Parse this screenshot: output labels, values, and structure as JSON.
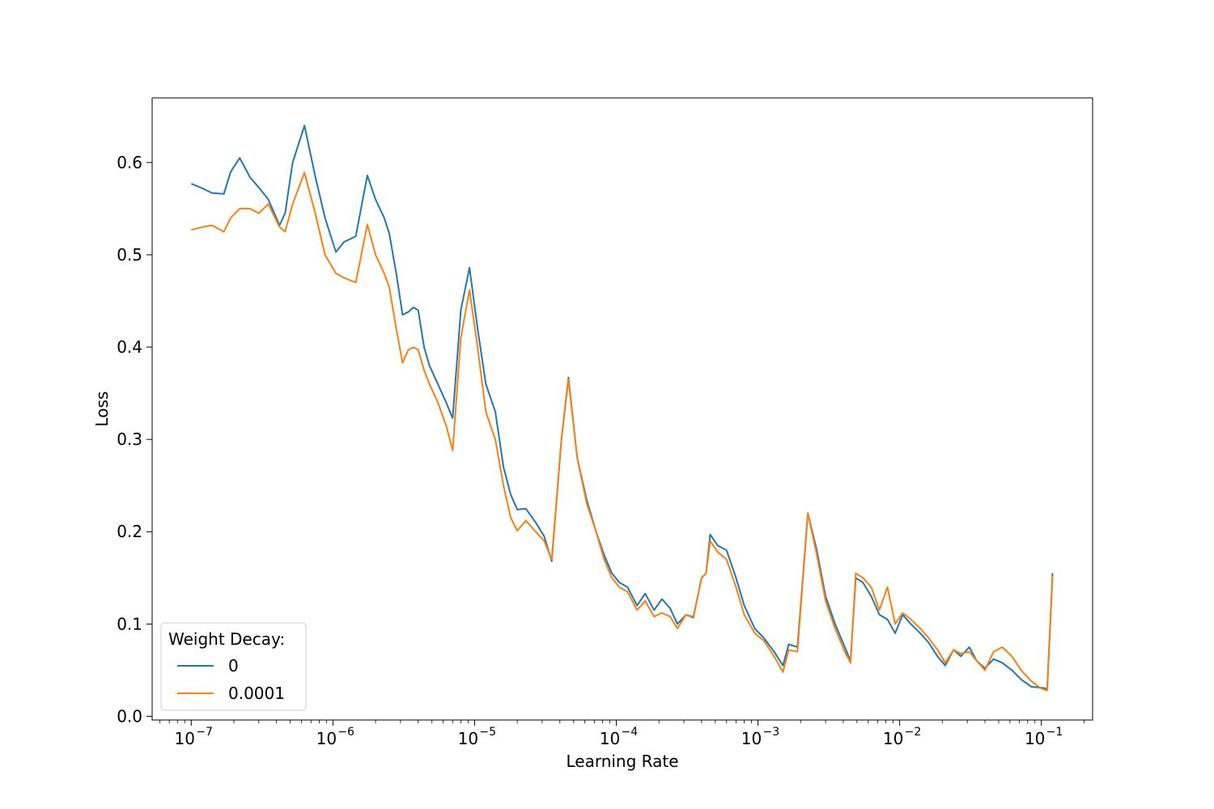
{
  "chart_data": {
    "type": "line",
    "xlabel": "Learning Rate",
    "ylabel": "Loss",
    "xscale": "log",
    "xlim": [
      5.3e-08,
      0.23
    ],
    "ylim": [
      -0.004,
      0.67
    ],
    "grid": false,
    "legend": {
      "title": "Weight Decay:",
      "placement": "lower-left"
    },
    "x_ticks": [
      {
        "value": 1e-07,
        "label": "10",
        "exp": "−7"
      },
      {
        "value": 1e-06,
        "label": "10",
        "exp": "−6"
      },
      {
        "value": 1e-05,
        "label": "10",
        "exp": "−5"
      },
      {
        "value": 0.0001,
        "label": "10",
        "exp": "−4"
      },
      {
        "value": 0.001,
        "label": "10",
        "exp": "−3"
      },
      {
        "value": 0.01,
        "label": "10",
        "exp": "−2"
      },
      {
        "value": 0.1,
        "label": "10",
        "exp": "−1"
      }
    ],
    "y_ticks": [
      {
        "value": 0.0,
        "label": "0.0"
      },
      {
        "value": 0.1,
        "label": "0.1"
      },
      {
        "value": 0.2,
        "label": "0.2"
      },
      {
        "value": 0.3,
        "label": "0.3"
      },
      {
        "value": 0.4,
        "label": "0.4"
      },
      {
        "value": 0.5,
        "label": "0.5"
      },
      {
        "value": 0.6,
        "label": "0.6"
      }
    ],
    "series": [
      {
        "name": "0",
        "color": "#1f77b4",
        "points": [
          [
            1e-07,
            0.577
          ],
          [
            1.2e-07,
            0.572
          ],
          [
            1.4e-07,
            0.567
          ],
          [
            1.7e-07,
            0.566
          ],
          [
            1.9e-07,
            0.59
          ],
          [
            2.2e-07,
            0.605
          ],
          [
            2.6e-07,
            0.584
          ],
          [
            3e-07,
            0.573
          ],
          [
            3.5e-07,
            0.56
          ],
          [
            4.2e-07,
            0.532
          ],
          [
            4.6e-07,
            0.545
          ],
          [
            5.2e-07,
            0.6
          ],
          [
            6.3e-07,
            0.64
          ],
          [
            7.5e-07,
            0.585
          ],
          [
            8.8e-07,
            0.54
          ],
          [
            1.05e-06,
            0.503
          ],
          [
            1.2e-06,
            0.514
          ],
          [
            1.45e-06,
            0.52
          ],
          [
            1.75e-06,
            0.586
          ],
          [
            2e-06,
            0.56
          ],
          [
            2.3e-06,
            0.54
          ],
          [
            2.5e-06,
            0.523
          ],
          [
            2.8e-06,
            0.48
          ],
          [
            3.1e-06,
            0.435
          ],
          [
            3.4e-06,
            0.438
          ],
          [
            3.7e-06,
            0.443
          ],
          [
            4e-06,
            0.44
          ],
          [
            4.4e-06,
            0.4
          ],
          [
            4.8e-06,
            0.38
          ],
          [
            5.5e-06,
            0.36
          ],
          [
            6.3e-06,
            0.34
          ],
          [
            7e-06,
            0.323
          ],
          [
            8e-06,
            0.44
          ],
          [
            9.2e-06,
            0.486
          ],
          [
            1.05e-05,
            0.42
          ],
          [
            1.2e-05,
            0.36
          ],
          [
            1.4e-05,
            0.33
          ],
          [
            1.6e-05,
            0.27
          ],
          [
            1.8e-05,
            0.24
          ],
          [
            2e-05,
            0.224
          ],
          [
            2.3e-05,
            0.225
          ],
          [
            2.7e-05,
            0.21
          ],
          [
            3.1e-05,
            0.195
          ],
          [
            3.5e-05,
            0.168
          ],
          [
            4.1e-05,
            0.3
          ],
          [
            4.6e-05,
            0.367
          ],
          [
            5.3e-05,
            0.28
          ],
          [
            6.2e-05,
            0.234
          ],
          [
            7.2e-05,
            0.2
          ],
          [
            8.2e-05,
            0.175
          ],
          [
            9.3e-05,
            0.155
          ],
          [
            0.000105,
            0.145
          ],
          [
            0.00012,
            0.14
          ],
          [
            0.00014,
            0.12
          ],
          [
            0.00016,
            0.133
          ],
          [
            0.000185,
            0.115
          ],
          [
            0.00021,
            0.127
          ],
          [
            0.00024,
            0.117
          ],
          [
            0.00027,
            0.1
          ],
          [
            0.00031,
            0.11
          ],
          [
            0.00035,
            0.107
          ],
          [
            0.0004,
            0.15
          ],
          [
            0.00043,
            0.155
          ],
          [
            0.00046,
            0.197
          ],
          [
            0.00052,
            0.185
          ],
          [
            0.0006,
            0.18
          ],
          [
            0.0007,
            0.15
          ],
          [
            0.0008,
            0.12
          ],
          [
            0.00095,
            0.095
          ],
          [
            0.0011,
            0.085
          ],
          [
            0.0013,
            0.07
          ],
          [
            0.0015,
            0.055
          ],
          [
            0.00165,
            0.078
          ],
          [
            0.0019,
            0.075
          ],
          [
            0.00225,
            0.22
          ],
          [
            0.0026,
            0.18
          ],
          [
            0.003,
            0.13
          ],
          [
            0.0035,
            0.1
          ],
          [
            0.0041,
            0.075
          ],
          [
            0.0045,
            0.06
          ],
          [
            0.0049,
            0.15
          ],
          [
            0.0055,
            0.145
          ],
          [
            0.0063,
            0.13
          ],
          [
            0.0072,
            0.11
          ],
          [
            0.0082,
            0.105
          ],
          [
            0.0093,
            0.09
          ],
          [
            0.0105,
            0.11
          ],
          [
            0.012,
            0.1
          ],
          [
            0.014,
            0.09
          ],
          [
            0.016,
            0.08
          ],
          [
            0.0185,
            0.065
          ],
          [
            0.021,
            0.055
          ],
          [
            0.024,
            0.072
          ],
          [
            0.027,
            0.065
          ],
          [
            0.031,
            0.075
          ],
          [
            0.035,
            0.06
          ],
          [
            0.04,
            0.052
          ],
          [
            0.046,
            0.062
          ],
          [
            0.053,
            0.058
          ],
          [
            0.062,
            0.05
          ],
          [
            0.072,
            0.04
          ],
          [
            0.085,
            0.032
          ],
          [
            0.1,
            0.031
          ],
          [
            0.11,
            0.03
          ],
          [
            0.12,
            0.155
          ]
        ]
      },
      {
        "name": "0.0001",
        "color": "#ff7f0e",
        "points": [
          [
            1e-07,
            0.527
          ],
          [
            1.2e-07,
            0.53
          ],
          [
            1.4e-07,
            0.532
          ],
          [
            1.7e-07,
            0.525
          ],
          [
            1.9e-07,
            0.54
          ],
          [
            2.2e-07,
            0.55
          ],
          [
            2.6e-07,
            0.55
          ],
          [
            3e-07,
            0.545
          ],
          [
            3.5e-07,
            0.555
          ],
          [
            4.2e-07,
            0.53
          ],
          [
            4.6e-07,
            0.525
          ],
          [
            5.2e-07,
            0.555
          ],
          [
            6.3e-07,
            0.589
          ],
          [
            7.5e-07,
            0.545
          ],
          [
            8.8e-07,
            0.5
          ],
          [
            1.05e-06,
            0.48
          ],
          [
            1.2e-06,
            0.475
          ],
          [
            1.45e-06,
            0.47
          ],
          [
            1.75e-06,
            0.533
          ],
          [
            2e-06,
            0.5
          ],
          [
            2.3e-06,
            0.48
          ],
          [
            2.5e-06,
            0.465
          ],
          [
            2.8e-06,
            0.42
          ],
          [
            3.1e-06,
            0.383
          ],
          [
            3.4e-06,
            0.397
          ],
          [
            3.7e-06,
            0.4
          ],
          [
            4e-06,
            0.397
          ],
          [
            4.4e-06,
            0.375
          ],
          [
            4.8e-06,
            0.36
          ],
          [
            5.5e-06,
            0.34
          ],
          [
            6.3e-06,
            0.315
          ],
          [
            7e-06,
            0.288
          ],
          [
            8e-06,
            0.41
          ],
          [
            9.2e-06,
            0.462
          ],
          [
            1.05e-05,
            0.4
          ],
          [
            1.2e-05,
            0.33
          ],
          [
            1.4e-05,
            0.3
          ],
          [
            1.6e-05,
            0.25
          ],
          [
            1.8e-05,
            0.215
          ],
          [
            2e-05,
            0.201
          ],
          [
            2.3e-05,
            0.212
          ],
          [
            2.7e-05,
            0.2
          ],
          [
            3.1e-05,
            0.19
          ],
          [
            3.5e-05,
            0.17
          ],
          [
            4.1e-05,
            0.3
          ],
          [
            4.6e-05,
            0.365
          ],
          [
            5.3e-05,
            0.28
          ],
          [
            6.2e-05,
            0.23
          ],
          [
            7.2e-05,
            0.2
          ],
          [
            8.2e-05,
            0.17
          ],
          [
            9.3e-05,
            0.15
          ],
          [
            0.000105,
            0.14
          ],
          [
            0.00012,
            0.135
          ],
          [
            0.00014,
            0.115
          ],
          [
            0.00016,
            0.125
          ],
          [
            0.000185,
            0.108
          ],
          [
            0.00021,
            0.112
          ],
          [
            0.00024,
            0.108
          ],
          [
            0.00027,
            0.095
          ],
          [
            0.00031,
            0.11
          ],
          [
            0.00035,
            0.108
          ],
          [
            0.0004,
            0.15
          ],
          [
            0.00043,
            0.155
          ],
          [
            0.00046,
            0.19
          ],
          [
            0.00052,
            0.178
          ],
          [
            0.0006,
            0.17
          ],
          [
            0.0007,
            0.14
          ],
          [
            0.0008,
            0.11
          ],
          [
            0.00095,
            0.09
          ],
          [
            0.0011,
            0.082
          ],
          [
            0.0013,
            0.065
          ],
          [
            0.0015,
            0.048
          ],
          [
            0.00165,
            0.072
          ],
          [
            0.0019,
            0.07
          ],
          [
            0.00225,
            0.22
          ],
          [
            0.0026,
            0.175
          ],
          [
            0.003,
            0.125
          ],
          [
            0.0035,
            0.095
          ],
          [
            0.0041,
            0.07
          ],
          [
            0.0045,
            0.058
          ],
          [
            0.0049,
            0.155
          ],
          [
            0.0055,
            0.15
          ],
          [
            0.0063,
            0.14
          ],
          [
            0.0072,
            0.115
          ],
          [
            0.0082,
            0.14
          ],
          [
            0.0093,
            0.1
          ],
          [
            0.0105,
            0.112
          ],
          [
            0.012,
            0.105
          ],
          [
            0.014,
            0.095
          ],
          [
            0.016,
            0.085
          ],
          [
            0.0185,
            0.072
          ],
          [
            0.021,
            0.058
          ],
          [
            0.024,
            0.072
          ],
          [
            0.027,
            0.068
          ],
          [
            0.031,
            0.07
          ],
          [
            0.035,
            0.06
          ],
          [
            0.04,
            0.05
          ],
          [
            0.046,
            0.07
          ],
          [
            0.053,
            0.075
          ],
          [
            0.062,
            0.065
          ],
          [
            0.072,
            0.05
          ],
          [
            0.085,
            0.038
          ],
          [
            0.1,
            0.03
          ],
          [
            0.11,
            0.028
          ],
          [
            0.12,
            0.152
          ]
        ]
      }
    ]
  }
}
